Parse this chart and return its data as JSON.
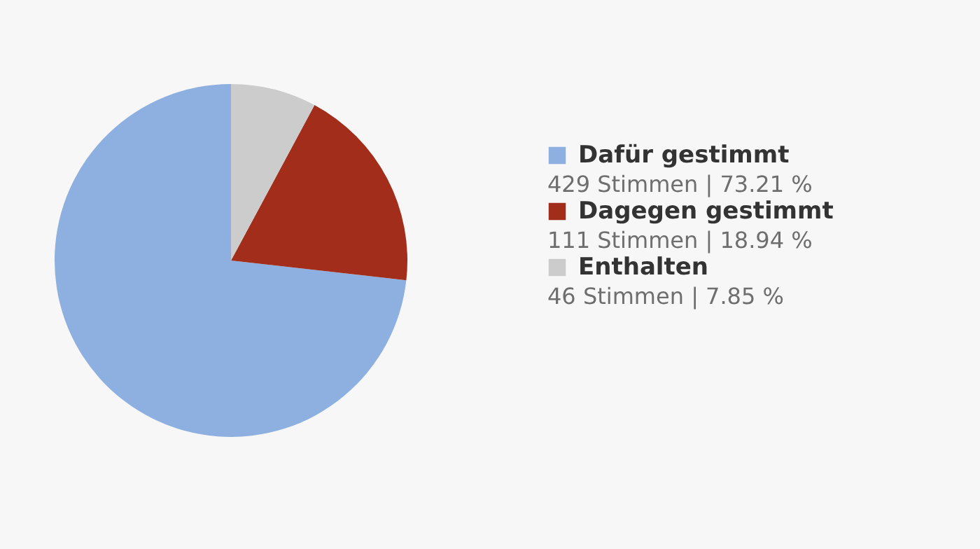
{
  "chart_data": {
    "type": "pie",
    "categories": [
      "Dafür gestimmt",
      "Dagegen gestimmt",
      "Enthalten"
    ],
    "values": [
      429,
      111,
      46
    ],
    "colors": [
      "#8eb0e0",
      "#a12d1a",
      "#cccccc"
    ],
    "value_labels": [
      "429 Stimmen | 73.21 %",
      "111 Stimmen | 18.94 %",
      "46 Stimmen | 7.85 %"
    ],
    "legend": "right"
  }
}
